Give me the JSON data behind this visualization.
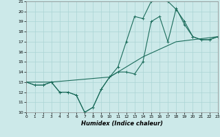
{
  "xlabel": "Humidex (Indice chaleur)",
  "xlim": [
    0,
    23
  ],
  "ylim": [
    10,
    21
  ],
  "yticks": [
    10,
    11,
    12,
    13,
    14,
    15,
    16,
    17,
    18,
    19,
    20,
    21
  ],
  "xticks": [
    0,
    1,
    2,
    3,
    4,
    5,
    6,
    7,
    8,
    9,
    10,
    11,
    12,
    13,
    14,
    15,
    16,
    17,
    18,
    19,
    20,
    21,
    22,
    23
  ],
  "bg_color": "#cce9e9",
  "line_color": "#1a6b5a",
  "grid_color": "#aad4d4",
  "line1_x": [
    0,
    1,
    2,
    3,
    4,
    5,
    6,
    7,
    8,
    9,
    10,
    11,
    12,
    13,
    14,
    15,
    16,
    17,
    18,
    19,
    20,
    21,
    22,
    23
  ],
  "line1_y": [
    13.0,
    12.7,
    12.7,
    13.0,
    12.0,
    12.0,
    11.7,
    10.0,
    10.5,
    12.3,
    13.5,
    14.0,
    14.0,
    13.8,
    15.0,
    19.0,
    19.5,
    17.0,
    20.3,
    18.7,
    17.5,
    17.2,
    17.2,
    17.5
  ],
  "line2_x": [
    0,
    1,
    2,
    3,
    4,
    5,
    6,
    7,
    8,
    9,
    10,
    11,
    12,
    13,
    14,
    15,
    16,
    17,
    18,
    19,
    20,
    21,
    22,
    23
  ],
  "line2_y": [
    13.0,
    12.7,
    12.7,
    13.0,
    12.0,
    12.0,
    11.7,
    10.0,
    10.5,
    12.3,
    13.5,
    14.5,
    17.0,
    19.5,
    19.3,
    21.0,
    21.2,
    21.0,
    20.2,
    19.0,
    17.5,
    17.2,
    17.2,
    17.5
  ],
  "line3_x": [
    0,
    3,
    10,
    14,
    18,
    23
  ],
  "line3_y": [
    13.0,
    13.0,
    13.5,
    15.5,
    17.0,
    17.5
  ]
}
